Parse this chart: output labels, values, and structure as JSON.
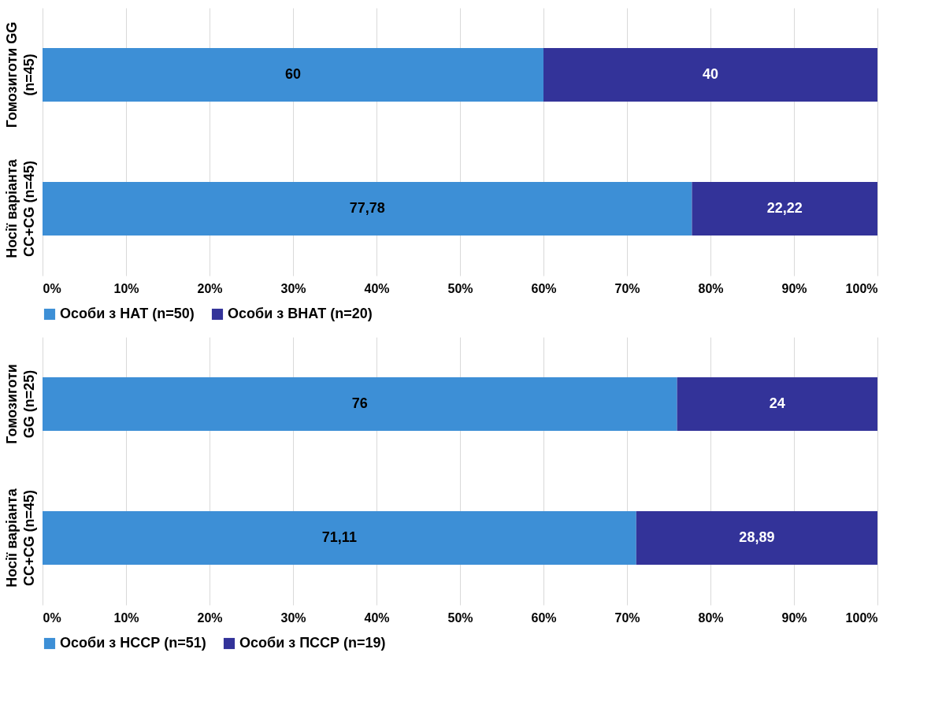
{
  "chart_data": [
    {
      "type": "bar",
      "orientation": "horizontal",
      "stacked": true,
      "categories": [
        "Гомозиготи GG\n(n=45)",
        "Носії варіанта\nCC+CG (n=45)"
      ],
      "series": [
        {
          "name": "Особи з НАТ (n=50)",
          "color": "#3d8fd6",
          "values": [
            60,
            77.78
          ],
          "value_labels": [
            "60",
            "77,78"
          ]
        },
        {
          "name": "Особи з ВНАТ (n=20)",
          "color": "#333399",
          "values": [
            40,
            22.22
          ],
          "value_labels": [
            "40",
            "22,22"
          ]
        }
      ],
      "xlim": [
        0,
        100
      ],
      "xticks": [
        {
          "value": 0,
          "label": "0%"
        },
        {
          "value": 10,
          "label": "10%"
        },
        {
          "value": 20,
          "label": "20%"
        },
        {
          "value": 30,
          "label": "30%"
        },
        {
          "value": 40,
          "label": "40%"
        },
        {
          "value": 50,
          "label": "50%"
        },
        {
          "value": 60,
          "label": "60%"
        },
        {
          "value": 70,
          "label": "70%"
        },
        {
          "value": 80,
          "label": "80%"
        },
        {
          "value": 90,
          "label": "90%"
        },
        {
          "value": 100,
          "label": "100%"
        }
      ],
      "grid": "x",
      "legend": "bottom"
    },
    {
      "type": "bar",
      "orientation": "horizontal",
      "stacked": true,
      "categories": [
        "Гомозиготи\nGG (n=25)",
        "Носії варіанта\nCC+CG (n=45)"
      ],
      "series": [
        {
          "name": "Особи з НССР (n=51)",
          "color": "#3d8fd6",
          "values": [
            76,
            71.11
          ],
          "value_labels": [
            "76",
            "71,11"
          ]
        },
        {
          "name": "Особи з ПССР (n=19)",
          "color": "#333399",
          "values": [
            24,
            28.89
          ],
          "value_labels": [
            "24",
            "28,89"
          ]
        }
      ],
      "xlim": [
        0,
        100
      ],
      "xticks": [
        {
          "value": 0,
          "label": "0%"
        },
        {
          "value": 10,
          "label": "10%"
        },
        {
          "value": 20,
          "label": "20%"
        },
        {
          "value": 30,
          "label": "30%"
        },
        {
          "value": 40,
          "label": "40%"
        },
        {
          "value": 50,
          "label": "50%"
        },
        {
          "value": 60,
          "label": "60%"
        },
        {
          "value": 70,
          "label": "70%"
        },
        {
          "value": 80,
          "label": "80%"
        },
        {
          "value": 90,
          "label": "90%"
        },
        {
          "value": 100,
          "label": "100%"
        }
      ],
      "grid": "x",
      "legend": "bottom"
    }
  ]
}
